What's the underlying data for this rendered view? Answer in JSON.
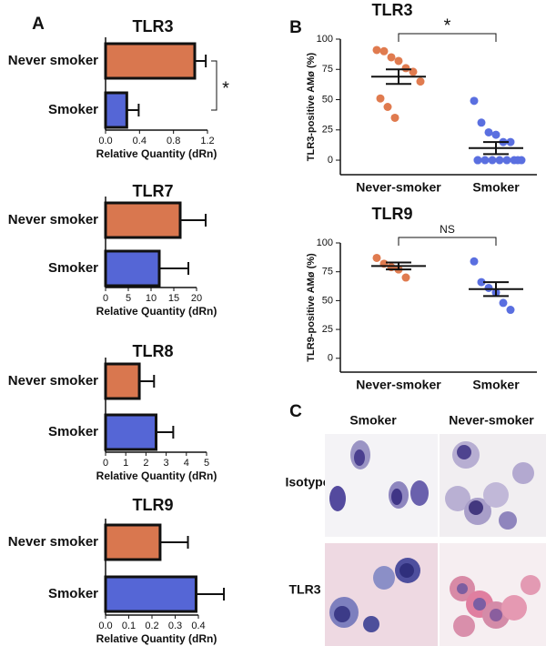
{
  "panel_labels": [
    "A",
    "B",
    "C"
  ],
  "chart_data": [
    {
      "type": "hbar",
      "title": "TLR3",
      "xlabel": "Relative Quantity (dRn)",
      "categories": [
        "Never smoker",
        "Smoker"
      ],
      "values": [
        1.05,
        0.25
      ],
      "errors": [
        0.13,
        0.14
      ],
      "colors": [
        "#d9774f",
        "#5566d6"
      ],
      "xlim": [
        0,
        1.2
      ],
      "xticks": [
        {
          "value": 0,
          "label": "0.0"
        },
        0.4,
        0.8,
        1.2
      ],
      "annotation": "*"
    },
    {
      "type": "hbar",
      "title": "TLR7",
      "xlabel": "Relative Quantity (dRn)",
      "categories": [
        "Never smoker",
        "Smoker"
      ],
      "values": [
        16.4,
        11.8
      ],
      "errors": [
        5.6,
        6.4
      ],
      "colors": [
        "#d9774f",
        "#5566d6"
      ],
      "xlim": [
        0,
        20
      ],
      "xticks": [
        0,
        5,
        10,
        15,
        20
      ]
    },
    {
      "type": "hbar",
      "title": "TLR8",
      "xlabel": "Relative Quantity (dRn)",
      "categories": [
        "Never smoker",
        "Smoker"
      ],
      "values": [
        1.67,
        2.5
      ],
      "errors": [
        0.73,
        0.85
      ],
      "colors": [
        "#d9774f",
        "#5566d6"
      ],
      "xlim": [
        0,
        5
      ],
      "xticks": [
        0,
        1,
        2,
        3,
        4,
        5
      ]
    },
    {
      "type": "hbar",
      "title": "TLR9",
      "xlabel": "Relative Quantity (dRn)",
      "categories": [
        "Never smoker",
        "Smoker"
      ],
      "values": [
        0.235,
        0.39
      ],
      "errors": [
        0.12,
        0.12
      ],
      "colors": [
        "#d9774f",
        "#5566d6"
      ],
      "xlim": [
        0,
        0.4
      ],
      "xticks": [
        {
          "value": 0,
          "label": "0.0"
        },
        0.1,
        0.2,
        0.3,
        0.4
      ]
    },
    {
      "type": "dot",
      "title": "TLR3",
      "ylabel": "TLR3-positive AMø (%)",
      "categories": [
        "Never-smoker",
        "Smoker"
      ],
      "groups": [
        {
          "values": [
            91,
            90,
            85,
            82,
            76,
            73,
            65,
            51,
            44,
            35
          ],
          "color": "#e07b4f",
          "mean": 69,
          "sem": 6
        },
        {
          "values": [
            49,
            31,
            23,
            21,
            15,
            15,
            0,
            0,
            0,
            0,
            0,
            0,
            0,
            0,
            0
          ],
          "color": "#5a6fe0",
          "mean": 10,
          "sem": 5
        }
      ],
      "ylim": [
        -12,
        100
      ],
      "yticks": [
        0,
        25,
        50,
        75,
        100
      ],
      "annotation": "*"
    },
    {
      "type": "dot",
      "title": "TLR9",
      "ylabel": "TLR9-positive AMø (%)",
      "categories": [
        "Never-smoker",
        "Smoker"
      ],
      "groups": [
        {
          "values": [
            87,
            82,
            79,
            77,
            70
          ],
          "color": "#e07b4f",
          "mean": 80,
          "sem": 3
        },
        {
          "values": [
            84,
            66,
            61,
            57,
            48,
            42
          ],
          "color": "#5a6fe0",
          "mean": 60,
          "sem": 6
        }
      ],
      "ylim": [
        -12,
        100
      ],
      "yticks": [
        0,
        25,
        50,
        75,
        100
      ],
      "annotation": "NS"
    }
  ],
  "micrographs": {
    "columns": [
      "Smoker",
      "Never-smoker"
    ],
    "rows": [
      "Isotype",
      "TLR3"
    ]
  }
}
